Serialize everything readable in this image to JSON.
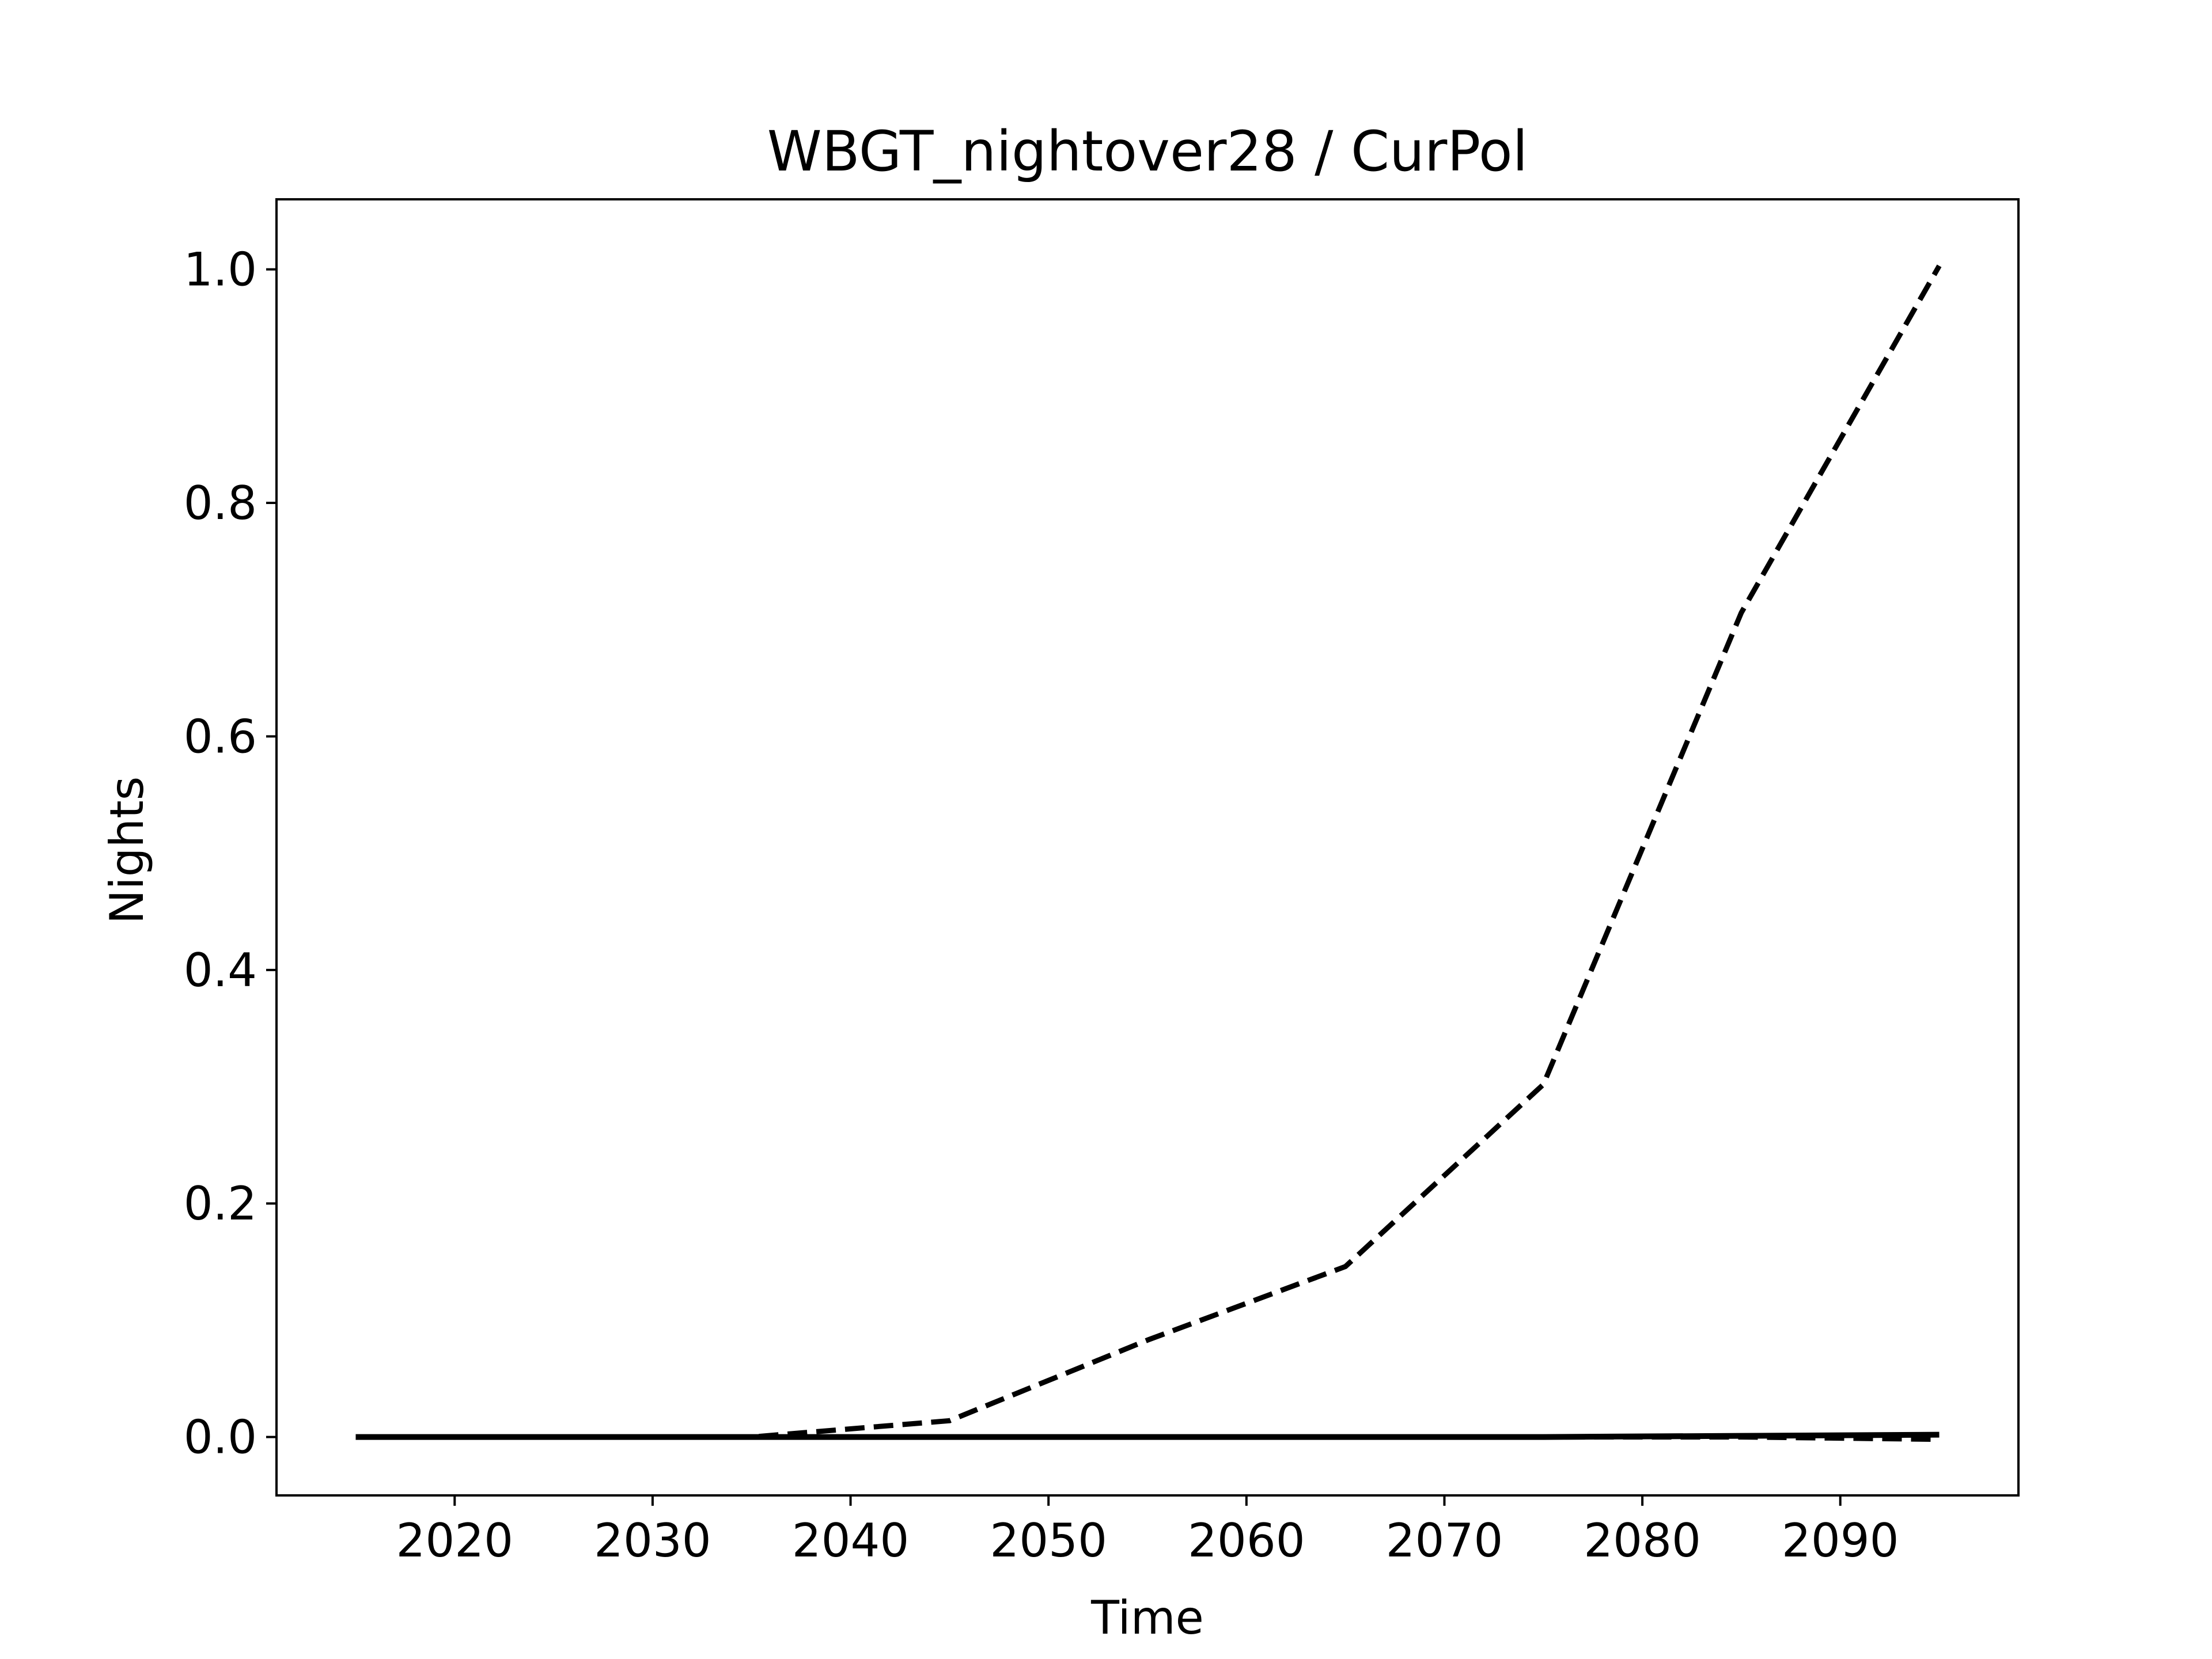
{
  "chart_data": {
    "type": "line",
    "title": "WBGT_nightover28 / CurPol",
    "xlabel": "Time",
    "ylabel": "Nights",
    "xlim": [
      2011,
      2099
    ],
    "ylim": [
      -0.05,
      1.06
    ],
    "xticks": [
      2020,
      2030,
      2040,
      2050,
      2060,
      2070,
      2080,
      2090
    ],
    "yticks": [
      0.0,
      0.2,
      0.4,
      0.6,
      0.8,
      1.0
    ],
    "xtick_labels": [
      "2020",
      "2030",
      "2040",
      "2050",
      "2060",
      "2070",
      "2080",
      "2090"
    ],
    "ytick_labels": [
      "0.0",
      "0.2",
      "0.4",
      "0.6",
      "0.8",
      "1.0"
    ],
    "grid": false,
    "legend": "none",
    "series": [
      {
        "style": "dashed",
        "color": "#000000",
        "x": [
          2015,
          2025,
          2035,
          2045,
          2055,
          2065,
          2075,
          2085,
          2095
        ],
        "y": [
          0.0,
          0.0,
          0.0,
          0.014,
          0.083,
          0.146,
          0.302,
          0.706,
          1.003
        ]
      },
      {
        "style": "solid",
        "color": "#000000",
        "x": [
          2015,
          2025,
          2035,
          2045,
          2055,
          2065,
          2075,
          2085,
          2095
        ],
        "y": [
          0.0,
          0.0,
          0.0,
          0.0,
          0.0,
          0.0,
          0.0,
          0.001,
          0.002
        ]
      },
      {
        "style": "dashed",
        "color": "#000000",
        "x": [
          2015,
          2025,
          2035,
          2045,
          2055,
          2065,
          2075,
          2085,
          2095
        ],
        "y": [
          0.0,
          0.0,
          0.0,
          0.0,
          0.0,
          0.0,
          0.0,
          0.0,
          -0.002
        ]
      }
    ]
  }
}
